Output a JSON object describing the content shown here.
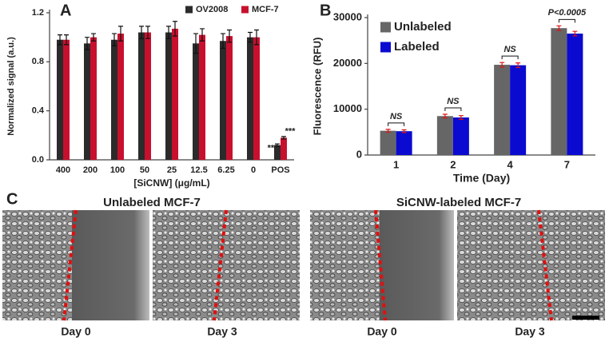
{
  "chart_data": [
    {
      "type": "bar",
      "panel": "A",
      "x_label": "[SiCNW] (μg/mL)",
      "y_label": "Normalized signal (a.u.)",
      "categories": [
        "400",
        "200",
        "100",
        "50",
        "25",
        "12.5",
        "6.25",
        "0",
        "POS"
      ],
      "series": [
        {
          "name": "OV2008",
          "color": "#2b2b2b",
          "values": [
            0.98,
            0.95,
            0.98,
            1.04,
            1.04,
            0.95,
            0.97,
            1.0,
            0.12
          ],
          "errors": [
            0.04,
            0.05,
            0.05,
            0.05,
            0.05,
            0.08,
            0.06,
            0.04,
            0.01
          ]
        },
        {
          "name": "MCF-7",
          "color": "#c8102e",
          "values": [
            0.98,
            1.0,
            1.03,
            1.04,
            1.07,
            1.02,
            1.01,
            1.0,
            0.18
          ],
          "errors": [
            0.04,
            0.03,
            0.06,
            0.05,
            0.06,
            0.05,
            0.05,
            0.06,
            0.01
          ]
        }
      ],
      "ylim": [
        0,
        1.2
      ],
      "yticks": [
        {
          "value": 0,
          "label": "0.0"
        },
        0.4,
        0.8,
        1.2
      ],
      "legend": "top-right",
      "annotations": [
        "***",
        "***"
      ]
    },
    {
      "type": "bar",
      "panel": "B",
      "x_label": "Time (Day)",
      "y_label": "Fluorescence (RFU)",
      "categories": [
        "1",
        "2",
        "4",
        "7"
      ],
      "series": [
        {
          "name": "Unlabeled",
          "color": "#666666",
          "values": [
            5300,
            8500,
            19700,
            27700
          ],
          "errors": [
            300,
            400,
            500,
            500
          ]
        },
        {
          "name": "Labeled",
          "color": "#0a0ad0",
          "values": [
            5200,
            8200,
            19600,
            26500
          ],
          "errors": [
            300,
            400,
            500,
            500
          ]
        }
      ],
      "ylim": [
        0,
        30000
      ],
      "yticks": [
        0,
        10000,
        20000,
        30000
      ],
      "legend": "top-left",
      "annotations": [
        "NS",
        "NS",
        "NS",
        "P<0.0005"
      ]
    }
  ],
  "panel_c": {
    "panel": "C",
    "groups": [
      {
        "title": "Unlabeled MCF-7",
        "days": [
          "Day 0",
          "Day 3"
        ]
      },
      {
        "title": "SiCNW-labeled MCF-7",
        "days": [
          "Day 0",
          "Day 3"
        ]
      }
    ]
  }
}
